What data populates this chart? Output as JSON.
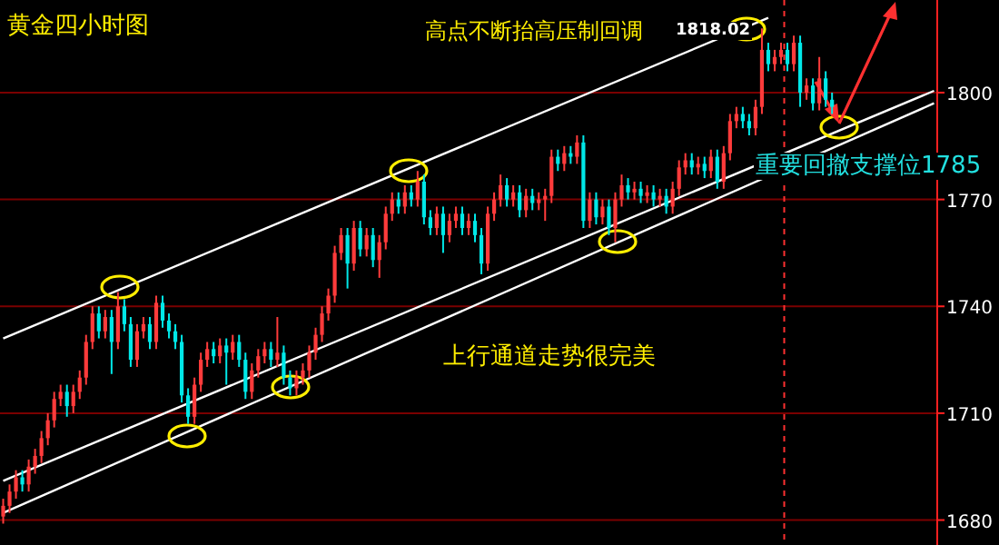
{
  "chart_data": {
    "type": "candlestick",
    "title": "黄金四小时图",
    "annotations": [
      "高点不断抬高压制回调",
      "1818.02",
      "上行通道走势很完美",
      "重要回撤支撑位1785"
    ],
    "categories": [
      null,
      null,
      null,
      null,
      null,
      null,
      null,
      null,
      null,
      null,
      null,
      null,
      null,
      null,
      null,
      null,
      null,
      null,
      null,
      null,
      null,
      null,
      null,
      null,
      null,
      null,
      null,
      null,
      null,
      null,
      null,
      null,
      null,
      null,
      null,
      null,
      null,
      null,
      null,
      null,
      null,
      null,
      null,
      null,
      null,
      null,
      null,
      null,
      null,
      null,
      null,
      null,
      null,
      null,
      null,
      null,
      null,
      null,
      null,
      null,
      null,
      null,
      null,
      null,
      null,
      null,
      null,
      null,
      null,
      null,
      null,
      null,
      null,
      null,
      null,
      null,
      null,
      null,
      null,
      null,
      null,
      null,
      null,
      null,
      null,
      null,
      null,
      null,
      null,
      null,
      null,
      null,
      null,
      null,
      null,
      null,
      null,
      null,
      null,
      null,
      null,
      null,
      null,
      null,
      null,
      null,
      null,
      null,
      null,
      null,
      null,
      null,
      null,
      null,
      null,
      null,
      null,
      null,
      null,
      null,
      null,
      null,
      null,
      null,
      null,
      null,
      null,
      null,
      null,
      null,
      null,
      null,
      null,
      null,
      null,
      null,
      null,
      null,
      null,
      null,
      null,
      null,
      null,
      null,
      null,
      null,
      null
    ],
    "ohlc": [
      [
        1681,
        1686,
        1679,
        1684
      ],
      [
        1684,
        1690,
        1682,
        1688
      ],
      [
        1688,
        1694,
        1686,
        1692
      ],
      [
        1692,
        1694,
        1688,
        1690
      ],
      [
        1690,
        1697,
        1688,
        1695
      ],
      [
        1695,
        1700,
        1693,
        1698
      ],
      [
        1698,
        1705,
        1696,
        1703
      ],
      [
        1703,
        1710,
        1701,
        1708
      ],
      [
        1708,
        1716,
        1706,
        1714
      ],
      [
        1714,
        1718,
        1712,
        1716
      ],
      [
        1716,
        1718,
        1709,
        1712
      ],
      [
        1712,
        1718,
        1710,
        1716
      ],
      [
        1716,
        1722,
        1714,
        1720
      ],
      [
        1720,
        1732,
        1718,
        1730
      ],
      [
        1730,
        1740,
        1728,
        1738
      ],
      [
        1738,
        1740,
        1731,
        1733
      ],
      [
        1733,
        1739,
        1731,
        1737
      ],
      [
        1737,
        1739,
        1721,
        1730
      ],
      [
        1730,
        1744,
        1728,
        1740
      ],
      [
        1740,
        1742,
        1733,
        1735
      ],
      [
        1735,
        1737,
        1723,
        1725
      ],
      [
        1725,
        1735,
        1723,
        1733
      ],
      [
        1733,
        1737,
        1731,
        1735
      ],
      [
        1735,
        1737,
        1728,
        1730
      ],
      [
        1730,
        1743,
        1728,
        1741
      ],
      [
        1741,
        1743,
        1734,
        1736
      ],
      [
        1736,
        1738,
        1731,
        1733
      ],
      [
        1733,
        1735,
        1728,
        1730
      ],
      [
        1730,
        1732,
        1713,
        1715
      ],
      [
        1715,
        1717,
        1707,
        1709
      ],
      [
        1709,
        1720,
        1707,
        1718
      ],
      [
        1718,
        1727,
        1716,
        1725
      ],
      [
        1725,
        1730,
        1723,
        1728
      ],
      [
        1728,
        1730,
        1724,
        1726
      ],
      [
        1726,
        1731,
        1724,
        1729
      ],
      [
        1729,
        1731,
        1718,
        1727
      ],
      [
        1727,
        1732,
        1725,
        1730
      ],
      [
        1730,
        1732,
        1723,
        1725
      ],
      [
        1725,
        1727,
        1714,
        1716
      ],
      [
        1716,
        1724,
        1714,
        1722
      ],
      [
        1722,
        1728,
        1720,
        1726
      ],
      [
        1726,
        1730,
        1724,
        1728
      ],
      [
        1728,
        1730,
        1723,
        1725
      ],
      [
        1725,
        1737,
        1723,
        1727
      ],
      [
        1727,
        1729,
        1718,
        1720
      ],
      [
        1720,
        1722,
        1715,
        1717
      ],
      [
        1717,
        1722,
        1715,
        1720
      ],
      [
        1720,
        1724,
        1718,
        1722
      ],
      [
        1722,
        1729,
        1720,
        1727
      ],
      [
        1727,
        1734,
        1725,
        1732
      ],
      [
        1732,
        1740,
        1730,
        1738
      ],
      [
        1738,
        1745,
        1736,
        1743
      ],
      [
        1743,
        1757,
        1741,
        1755
      ],
      [
        1755,
        1762,
        1753,
        1760
      ],
      [
        1760,
        1762,
        1745,
        1752
      ],
      [
        1752,
        1764,
        1750,
        1762
      ],
      [
        1762,
        1764,
        1754,
        1756
      ],
      [
        1756,
        1762,
        1754,
        1760
      ],
      [
        1760,
        1762,
        1751,
        1753
      ],
      [
        1753,
        1760,
        1748,
        1758
      ],
      [
        1758,
        1768,
        1756,
        1766
      ],
      [
        1766,
        1772,
        1764,
        1770
      ],
      [
        1770,
        1772,
        1766,
        1768
      ],
      [
        1768,
        1774,
        1766,
        1772
      ],
      [
        1772,
        1774,
        1768,
        1770
      ],
      [
        1770,
        1778,
        1768,
        1775
      ],
      [
        1775,
        1777,
        1763,
        1765
      ],
      [
        1765,
        1767,
        1760,
        1762
      ],
      [
        1762,
        1768,
        1760,
        1766
      ],
      [
        1766,
        1768,
        1755,
        1760
      ],
      [
        1760,
        1766,
        1758,
        1764
      ],
      [
        1764,
        1768,
        1762,
        1766
      ],
      [
        1766,
        1768,
        1760,
        1762
      ],
      [
        1762,
        1766,
        1760,
        1764
      ],
      [
        1764,
        1766,
        1758,
        1760
      ],
      [
        1760,
        1762,
        1749,
        1752
      ],
      [
        1752,
        1768,
        1750,
        1766
      ],
      [
        1766,
        1772,
        1764,
        1770
      ],
      [
        1770,
        1777,
        1768,
        1774
      ],
      [
        1774,
        1776,
        1768,
        1770
      ],
      [
        1770,
        1774,
        1768,
        1772
      ],
      [
        1772,
        1774,
        1765,
        1767
      ],
      [
        1767,
        1773,
        1765,
        1771
      ],
      [
        1771,
        1773,
        1767,
        1769
      ],
      [
        1769,
        1772,
        1767,
        1770
      ],
      [
        1770,
        1773,
        1764,
        1771
      ],
      [
        1771,
        1784,
        1769,
        1782
      ],
      [
        1782,
        1784,
        1778,
        1780
      ],
      [
        1780,
        1785,
        1778,
        1783
      ],
      [
        1783,
        1785,
        1780,
        1782
      ],
      [
        1782,
        1788,
        1780,
        1786
      ],
      [
        1786,
        1788,
        1762,
        1764
      ],
      [
        1764,
        1772,
        1762,
        1770
      ],
      [
        1770,
        1772,
        1763,
        1765
      ],
      [
        1765,
        1770,
        1763,
        1768
      ],
      [
        1768,
        1770,
        1760,
        1762
      ],
      [
        1762,
        1772,
        1758,
        1770
      ],
      [
        1770,
        1777,
        1768,
        1774
      ],
      [
        1774,
        1776,
        1770,
        1772
      ],
      [
        1772,
        1775,
        1770,
        1773
      ],
      [
        1773,
        1775,
        1769,
        1771
      ],
      [
        1771,
        1774,
        1769,
        1772
      ],
      [
        1772,
        1774,
        1768,
        1770
      ],
      [
        1770,
        1773,
        1768,
        1771
      ],
      [
        1771,
        1773,
        1766,
        1768
      ],
      [
        1768,
        1775,
        1766,
        1773
      ],
      [
        1773,
        1781,
        1771,
        1779
      ],
      [
        1779,
        1783,
        1777,
        1781
      ],
      [
        1781,
        1783,
        1777,
        1779
      ],
      [
        1779,
        1782,
        1777,
        1780
      ],
      [
        1780,
        1782,
        1776,
        1778
      ],
      [
        1778,
        1784,
        1776,
        1782
      ],
      [
        1782,
        1784,
        1773,
        1775
      ],
      [
        1775,
        1785,
        1773,
        1783
      ],
      [
        1783,
        1794,
        1781,
        1792
      ],
      [
        1792,
        1796,
        1790,
        1794
      ],
      [
        1794,
        1796,
        1790,
        1792
      ],
      [
        1792,
        1794,
        1788,
        1790
      ],
      [
        1790,
        1798,
        1788,
        1796
      ],
      [
        1796,
        1818.02,
        1794,
        1812
      ],
      [
        1812,
        1814,
        1806,
        1808
      ],
      [
        1808,
        1812,
        1806,
        1810
      ],
      [
        1810,
        1814,
        1808,
        1812
      ],
      [
        1812,
        1814,
        1806,
        1808
      ],
      [
        1808,
        1816,
        1806,
        1814
      ],
      [
        1814,
        1816,
        1796,
        1800
      ],
      [
        1800,
        1804,
        1798,
        1802
      ],
      [
        1802,
        1804,
        1795,
        1797
      ],
      [
        1797,
        1810,
        1795,
        1804
      ],
      [
        1804,
        1806,
        1796,
        1798
      ],
      [
        1798,
        1800,
        1794,
        1796
      ],
      null,
      null,
      null,
      null,
      null,
      null,
      null,
      null,
      null,
      null,
      null,
      null,
      null,
      null,
      null,
      null
    ],
    "series": [
      {
        "type": "line",
        "color": "#ffffff",
        "values": [
          1731,
          null,
          null,
          null,
          null,
          null,
          null,
          null,
          null,
          null,
          null,
          null,
          null,
          null,
          null,
          null,
          null,
          null,
          null,
          null,
          null,
          null,
          null,
          null,
          null,
          null,
          null,
          null,
          null,
          null,
          null,
          null,
          null,
          null,
          null,
          null,
          null,
          null,
          null,
          null,
          null,
          null,
          null,
          null,
          null,
          null,
          null,
          null,
          null,
          null,
          null,
          null,
          null,
          null,
          null,
          null,
          null,
          null,
          null,
          null,
          null,
          null,
          null,
          null,
          null,
          null,
          null,
          null,
          null,
          null,
          null,
          null,
          null,
          null,
          null,
          null,
          null,
          null,
          null,
          null,
          null,
          null,
          null,
          null,
          null,
          null,
          null,
          null,
          null,
          null,
          null,
          null,
          null,
          null,
          null,
          null,
          null,
          null,
          null,
          null,
          null,
          null,
          null,
          null,
          null,
          null,
          null,
          null,
          null,
          null,
          null,
          null,
          null,
          null,
          null,
          null,
          null,
          null,
          null,
          null,
          1821,
          null,
          null,
          null,
          null,
          null,
          null,
          null,
          null,
          null,
          null,
          null,
          null,
          null,
          null,
          null,
          null,
          null,
          null,
          null,
          null,
          null,
          null,
          null,
          null,
          null,
          null
        ]
      },
      {
        "type": "line",
        "color": "#ffffff",
        "values": [
          1691,
          null,
          null,
          null,
          null,
          null,
          null,
          null,
          null,
          null,
          null,
          null,
          null,
          null,
          null,
          null,
          null,
          null,
          null,
          null,
          null,
          null,
          null,
          null,
          null,
          null,
          null,
          null,
          null,
          null,
          null,
          null,
          null,
          null,
          null,
          null,
          null,
          null,
          null,
          null,
          null,
          null,
          null,
          null,
          null,
          null,
          null,
          null,
          null,
          null,
          null,
          null,
          null,
          null,
          null,
          null,
          null,
          null,
          null,
          null,
          null,
          null,
          null,
          null,
          null,
          null,
          null,
          null,
          null,
          null,
          null,
          null,
          null,
          null,
          null,
          null,
          null,
          null,
          null,
          null,
          null,
          null,
          null,
          null,
          null,
          null,
          null,
          null,
          null,
          null,
          null,
          null,
          null,
          null,
          null,
          null,
          null,
          null,
          null,
          null,
          null,
          null,
          null,
          null,
          null,
          null,
          null,
          null,
          null,
          null,
          null,
          null,
          null,
          null,
          null,
          null,
          null,
          null,
          null,
          null,
          null,
          null,
          null,
          null,
          null,
          null,
          null,
          null,
          null,
          null,
          null,
          null,
          null,
          null,
          null,
          null,
          null,
          null,
          null,
          null,
          null,
          null,
          null,
          null,
          null,
          null,
          1800.5
        ]
      },
      {
        "type": "line",
        "color": "#ffffff",
        "values": [
          1682,
          null,
          null,
          null,
          null,
          null,
          null,
          null,
          null,
          null,
          null,
          null,
          null,
          null,
          null,
          null,
          null,
          null,
          null,
          null,
          null,
          null,
          null,
          null,
          null,
          null,
          null,
          null,
          null,
          null,
          null,
          null,
          null,
          null,
          null,
          null,
          null,
          null,
          null,
          null,
          null,
          null,
          null,
          null,
          null,
          null,
          null,
          null,
          null,
          null,
          null,
          null,
          null,
          null,
          null,
          null,
          null,
          null,
          null,
          null,
          null,
          null,
          null,
          null,
          null,
          null,
          null,
          null,
          null,
          null,
          null,
          null,
          null,
          null,
          null,
          null,
          null,
          null,
          null,
          null,
          null,
          null,
          null,
          null,
          null,
          null,
          null,
          null,
          null,
          null,
          null,
          null,
          null,
          null,
          null,
          null,
          null,
          null,
          null,
          null,
          null,
          null,
          null,
          null,
          null,
          null,
          null,
          null,
          null,
          null,
          null,
          null,
          null,
          null,
          null,
          null,
          null,
          null,
          null,
          null,
          null,
          null,
          null,
          null,
          null,
          null,
          null,
          null,
          null,
          null,
          null,
          null,
          null,
          null,
          null,
          null,
          null,
          null,
          null,
          null,
          null,
          null,
          null,
          null,
          null,
          null,
          1797
        ]
      }
    ],
    "ylim": [
      1673,
      1826
    ],
    "yticks": [
      1680,
      1710,
      1740,
      1770,
      1800
    ],
    "grid": "y",
    "tick_labels": "y"
  }
}
